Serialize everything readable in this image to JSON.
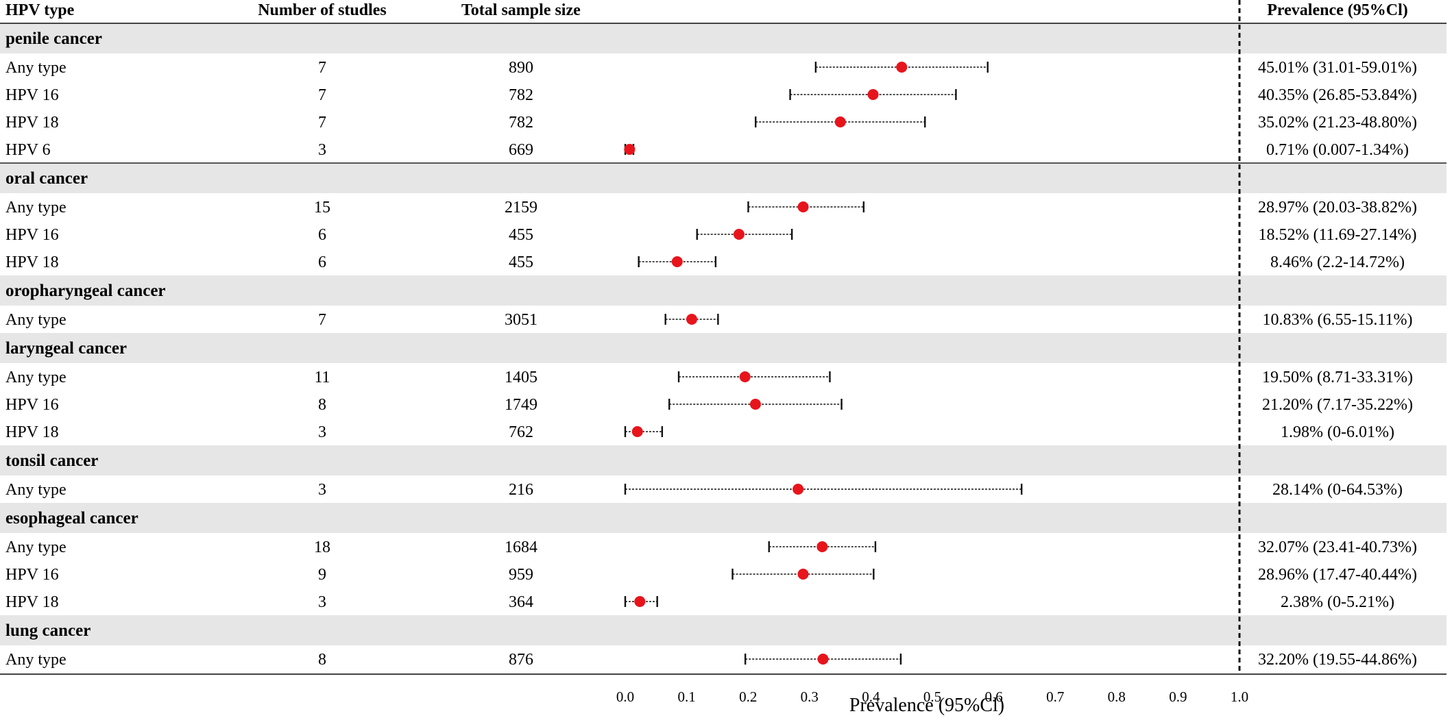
{
  "figure_type": "forest plot",
  "columns": {
    "hpv_type": "HPV type",
    "studies": "Number of studles",
    "sample_size": "Total sample size",
    "prevalence": "Prevalence (95%Cl)"
  },
  "chart_data": {
    "type": "scatter",
    "xlabel": "Prevalence (95%Cl)",
    "xlim": [
      0,
      1
    ],
    "x_ticks": [
      "0.0",
      "0.1",
      "0.2",
      "0.3",
      "0.4",
      "0.5",
      "0.6",
      "0.7",
      "0.8",
      "0.9",
      "1.0"
    ],
    "reference_line": 1.0,
    "reference_style": "dashed",
    "colors": {
      "point": "#e8141c",
      "whisker": "#111111",
      "group_band": "#e6e6e6"
    },
    "groups": [
      {
        "label": "penile cancer",
        "rows": [
          {
            "type": "Any type",
            "studies": "7",
            "n": "890",
            "est": 0.4501,
            "lo": 0.3101,
            "hi": 0.5901,
            "text": "45.01% (31.01-59.01%)"
          },
          {
            "type": "HPV 16",
            "studies": "7",
            "n": "782",
            "est": 0.4035,
            "lo": 0.2685,
            "hi": 0.5384,
            "text": "40.35% (26.85-53.84%)"
          },
          {
            "type": "HPV 18",
            "studies": "7",
            "n": "782",
            "est": 0.3502,
            "lo": 0.2123,
            "hi": 0.488,
            "text": "35.02% (21.23-48.80%)"
          },
          {
            "type": "HPV 6",
            "studies": "3",
            "n": "669",
            "est": 0.0071,
            "lo": 7e-05,
            "hi": 0.0134,
            "text": "0.71% (0.007-1.34%)"
          }
        ]
      },
      {
        "label": "oral cancer",
        "rows": [
          {
            "type": "Any type",
            "studies": "15",
            "n": "2159",
            "est": 0.2897,
            "lo": 0.2003,
            "hi": 0.3882,
            "text": "28.97% (20.03-38.82%)"
          },
          {
            "type": "HPV 16",
            "studies": "6",
            "n": "455",
            "est": 0.1852,
            "lo": 0.1169,
            "hi": 0.2714,
            "text": "18.52% (11.69-27.14%)"
          },
          {
            "type": "HPV 18",
            "studies": "6",
            "n": "455",
            "est": 0.0846,
            "lo": 0.022,
            "hi": 0.1472,
            "text": "8.46% (2.2-14.72%)"
          }
        ]
      },
      {
        "label": "oropharyngeal cancer",
        "rows": [
          {
            "type": "Any type",
            "studies": "7",
            "n": "3051",
            "est": 0.1083,
            "lo": 0.0655,
            "hi": 0.1511,
            "text": "10.83% (6.55-15.11%)"
          }
        ]
      },
      {
        "label": "laryngeal cancer",
        "rows": [
          {
            "type": "Any type",
            "studies": "11",
            "n": "1405",
            "est": 0.195,
            "lo": 0.0871,
            "hi": 0.3331,
            "text": "19.50% (8.71-33.31%)"
          },
          {
            "type": "HPV 16",
            "studies": "8",
            "n": "1749",
            "est": 0.212,
            "lo": 0.0717,
            "hi": 0.3522,
            "text": "21.20% (7.17-35.22%)"
          },
          {
            "type": "HPV 18",
            "studies": "3",
            "n": "762",
            "est": 0.0198,
            "lo": 0.0,
            "hi": 0.0601,
            "text": "1.98% (0-6.01%)"
          }
        ]
      },
      {
        "label": "tonsil cancer",
        "rows": [
          {
            "type": "Any type",
            "studies": "3",
            "n": "216",
            "est": 0.2814,
            "lo": 0.0,
            "hi": 0.6453,
            "text": "28.14% (0-64.53%)"
          }
        ]
      },
      {
        "label": "esophageal cancer",
        "rows": [
          {
            "type": "Any type",
            "studies": "18",
            "n": "1684",
            "est": 0.3207,
            "lo": 0.2341,
            "hi": 0.4073,
            "text": "32.07% (23.41-40.73%)"
          },
          {
            "type": "HPV 16",
            "studies": "9",
            "n": "959",
            "est": 0.2896,
            "lo": 0.1747,
            "hi": 0.4044,
            "text": "28.96% (17.47-40.44%)"
          },
          {
            "type": "HPV 18",
            "studies": "3",
            "n": "364",
            "est": 0.0238,
            "lo": 0.0,
            "hi": 0.0521,
            "text": "2.38% (0-5.21%)"
          }
        ]
      },
      {
        "label": "lung cancer",
        "rows": [
          {
            "type": "Any type",
            "studies": "8",
            "n": "876",
            "est": 0.322,
            "lo": 0.1955,
            "hi": 0.4486,
            "text": "32.20% (19.55-44.86%)"
          }
        ]
      }
    ]
  }
}
